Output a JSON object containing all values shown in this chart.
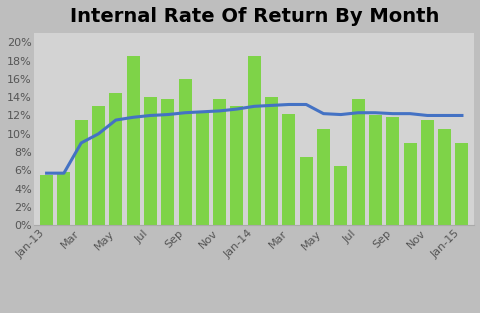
{
  "title": "Internal Rate Of Return By Month",
  "bar_values": [
    0.055,
    0.058,
    0.115,
    0.13,
    0.145,
    0.185,
    0.14,
    0.138,
    0.16,
    0.125,
    0.138,
    0.13,
    0.185,
    0.14,
    0.122,
    0.075,
    0.105,
    0.065,
    0.138,
    0.12,
    0.118,
    0.09,
    0.115,
    0.105,
    0.09
  ],
  "line_values": [
    0.057,
    0.057,
    0.09,
    0.1,
    0.115,
    0.118,
    0.12,
    0.121,
    0.123,
    0.124,
    0.125,
    0.127,
    0.13,
    0.131,
    0.132,
    0.132,
    0.122,
    0.121,
    0.123,
    0.123,
    0.122,
    0.122,
    0.12,
    0.12,
    0.12
  ],
  "bar_color": "#7ED348",
  "line_color": "#4472C4",
  "background_color": "#BEBEBE",
  "plot_bg_color": "#D3D3D3",
  "ylim": [
    0,
    0.21
  ],
  "ytick_vals": [
    0.0,
    0.02,
    0.04,
    0.06,
    0.08,
    0.1,
    0.12,
    0.14,
    0.16,
    0.18,
    0.2
  ],
  "xtick_labels": [
    "Jan-13",
    "Mar",
    "May",
    "Jul",
    "Sep",
    "Nov",
    "Jan-14",
    "Mar",
    "May",
    "Jul",
    "Sep",
    "Nov",
    "Jan-15"
  ],
  "xtick_positions": [
    0,
    2,
    4,
    6,
    8,
    10,
    12,
    14,
    16,
    18,
    20,
    22,
    24
  ],
  "title_fontsize": 14,
  "tick_fontsize": 8,
  "legend_fontsize": 9
}
